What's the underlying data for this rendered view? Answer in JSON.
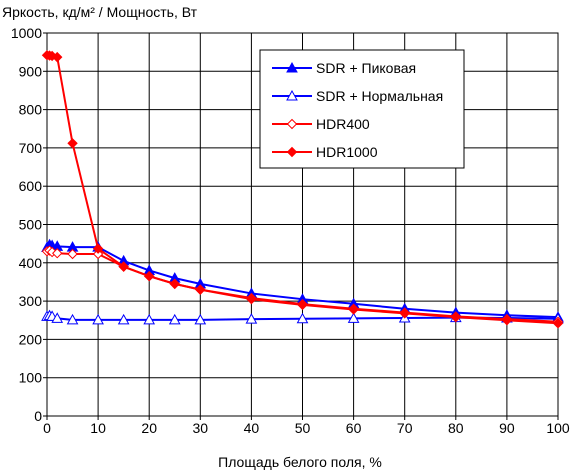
{
  "chart_data": {
    "type": "line",
    "title": "Яркость, кд/м² / Мощность, Вт",
    "xlabel": "Площадь белого поля, %",
    "ylabel": "",
    "xlim": [
      0,
      100
    ],
    "ylim": [
      0,
      1000
    ],
    "x_ticks": [
      0,
      10,
      20,
      30,
      40,
      50,
      60,
      70,
      80,
      90,
      100
    ],
    "y_ticks": [
      0,
      100,
      200,
      300,
      400,
      500,
      600,
      700,
      800,
      900,
      1000
    ],
    "grid": true,
    "legend_position": "top-right",
    "series": [
      {
        "name": "SDR + Пиковая",
        "color": "#0000ff",
        "marker": "triangle-filled",
        "x": [
          0,
          0.5,
          1,
          2,
          5,
          10,
          15,
          20,
          25,
          30,
          40,
          50,
          60,
          70,
          80,
          90,
          100
        ],
        "y": [
          440,
          447,
          445,
          443,
          441,
          441,
          405,
          380,
          360,
          345,
          320,
          305,
          293,
          280,
          270,
          263,
          258
        ]
      },
      {
        "name": "SDR + Нормальная",
        "color": "#0000ff",
        "marker": "triangle-open",
        "x": [
          0,
          0.5,
          1,
          2,
          5,
          10,
          15,
          20,
          25,
          30,
          40,
          50,
          60,
          70,
          80,
          90,
          100
        ],
        "y": [
          260,
          262,
          260,
          255,
          251,
          251,
          251,
          251,
          251,
          251,
          253,
          254,
          255,
          256,
          257,
          256,
          254
        ]
      },
      {
        "name": "HDR400",
        "color": "#ff0000",
        "marker": "diamond-open",
        "x": [
          0,
          0.5,
          1,
          2,
          5,
          10,
          15,
          20,
          25,
          30,
          40,
          50,
          60,
          70,
          80,
          90,
          100
        ],
        "y": [
          430,
          432,
          428,
          425,
          423,
          423,
          390,
          365,
          345,
          330,
          308,
          292,
          280,
          270,
          260,
          253,
          246
        ]
      },
      {
        "name": "HDR1000",
        "color": "#ff0000",
        "marker": "diamond-filled",
        "x": [
          0,
          0.5,
          1,
          2,
          5,
          10,
          15,
          20,
          25,
          30,
          40,
          50,
          60,
          70,
          80,
          90,
          100
        ],
        "y": [
          942,
          941,
          940,
          937,
          712,
          437,
          390,
          365,
          345,
          330,
          305,
          290,
          278,
          268,
          258,
          250,
          242
        ]
      }
    ]
  }
}
